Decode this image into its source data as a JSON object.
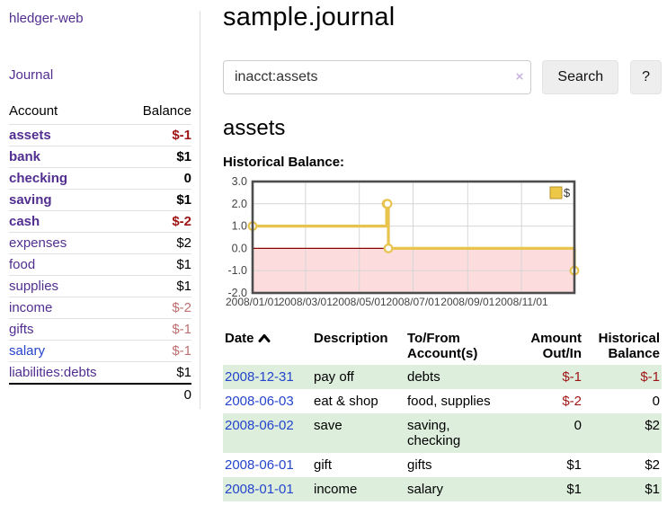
{
  "app": {
    "title": "hledger-web",
    "nav_journal_label": "Journal"
  },
  "sidebar": {
    "header": {
      "account": "Account",
      "balance": "Balance"
    },
    "accounts": [
      {
        "name": "assets",
        "depth": 1,
        "bold": true,
        "balance": "$-1",
        "tone": "neg-strong",
        "variant": "purple"
      },
      {
        "name": "bank",
        "depth": 2,
        "bold": true,
        "balance": "$1",
        "tone": "",
        "variant": "purple"
      },
      {
        "name": "checking",
        "depth": 3,
        "bold": true,
        "balance": "0",
        "tone": "",
        "variant": "purple"
      },
      {
        "name": "saving",
        "depth": 3,
        "bold": true,
        "balance": "$1",
        "tone": "",
        "variant": "purple"
      },
      {
        "name": "cash",
        "depth": 2,
        "bold": true,
        "balance": "$-2",
        "tone": "neg-strong",
        "variant": "purple"
      },
      {
        "name": "expenses",
        "depth": 1,
        "bold": false,
        "balance": "$2",
        "tone": "",
        "variant": "purple"
      },
      {
        "name": "food",
        "depth": 2,
        "bold": false,
        "balance": "$1",
        "tone": "",
        "variant": "purple"
      },
      {
        "name": "supplies",
        "depth": 2,
        "bold": false,
        "balance": "$1",
        "tone": "",
        "variant": "purple"
      },
      {
        "name": "income",
        "depth": 1,
        "bold": false,
        "balance": "$-2",
        "tone": "neg-soft",
        "variant": "purple"
      },
      {
        "name": "gifts",
        "depth": 2,
        "bold": false,
        "balance": "$-1",
        "tone": "neg-soft",
        "variant": "purple"
      },
      {
        "name": "salary",
        "depth": 2,
        "bold": false,
        "balance": "$-1",
        "tone": "neg-soft",
        "variant": "blue"
      },
      {
        "name": "liabilities:debts",
        "depth": 1,
        "bold": false,
        "balance": "$1",
        "tone": "",
        "variant": "purple"
      }
    ],
    "total": "0"
  },
  "header": {
    "title": "sample.journal"
  },
  "search": {
    "value": "inacct:assets",
    "clear_label": "×",
    "search_button": "Search",
    "help_button": "?"
  },
  "account_view": {
    "heading": "assets",
    "chart_label": "Historical Balance:"
  },
  "chart_data": {
    "type": "line",
    "title": "Historical Balance",
    "step": true,
    "series": [
      {
        "name": "$",
        "color": "#e8c44f",
        "points": [
          {
            "date": "2008-01-01",
            "x": 0,
            "y": 1
          },
          {
            "date": "2008-06-01",
            "x": 152,
            "y": 2
          },
          {
            "date": "2008-06-02",
            "x": 153,
            "y": 2
          },
          {
            "date": "2008-06-03",
            "x": 154,
            "y": 0
          },
          {
            "date": "2008-12-31",
            "x": 365,
            "y": -1
          }
        ]
      }
    ],
    "xlim": [
      0,
      365
    ],
    "ylim": [
      -2,
      3
    ],
    "y_ticks": [
      3,
      2,
      1,
      0,
      -1,
      -2
    ],
    "x_ticks": [
      {
        "label": "2008/01/01",
        "x": 0
      },
      {
        "label": "2008/03/01",
        "x": 60
      },
      {
        "label": "2008/05/01",
        "x": 121
      },
      {
        "label": "2008/07/01",
        "x": 182
      },
      {
        "label": "2008/09/01",
        "x": 244
      },
      {
        "label": "2008/11/01",
        "x": 305
      }
    ],
    "legend": {
      "label": "$",
      "position": "top-right",
      "swatch_color": "#ecc846",
      "swatch_border": "#b89130"
    },
    "grid": true,
    "grid_color": "#d6d6d6",
    "negative_region_color": "#fcdcdc",
    "zero_line_color": "#8b0000",
    "border_color": "#4d4d4d",
    "marker_fill": "#ffffff"
  },
  "register": {
    "columns": [
      {
        "label": "Date",
        "align": "left"
      },
      {
        "label": "Description",
        "align": "left"
      },
      {
        "label": "To/From\nAccount(s)",
        "align": "left"
      },
      {
        "label": "Amount\nOut/In",
        "align": "right"
      },
      {
        "label": "Historical\nBalance",
        "align": "right"
      }
    ],
    "rows": [
      {
        "date": "2008-12-31",
        "description": "pay off",
        "accounts": "debts",
        "amount": "$-1",
        "amount_neg": true,
        "balance": "$-1",
        "balance_neg": true
      },
      {
        "date": "2008-06-03",
        "description": "eat & shop",
        "accounts": "food, supplies",
        "amount": "$-2",
        "amount_neg": true,
        "balance": "0",
        "balance_neg": false
      },
      {
        "date": "2008-06-02",
        "description": "save",
        "accounts": "saving, checking",
        "amount": "0",
        "amount_neg": false,
        "balance": "$2",
        "balance_neg": false
      },
      {
        "date": "2008-06-01",
        "description": "gift",
        "accounts": "gifts",
        "amount": "$1",
        "amount_neg": false,
        "balance": "$2",
        "balance_neg": false
      },
      {
        "date": "2008-01-01",
        "description": "income",
        "accounts": "salary",
        "amount": "$1",
        "amount_neg": false,
        "balance": "$1",
        "balance_neg": false
      }
    ]
  }
}
